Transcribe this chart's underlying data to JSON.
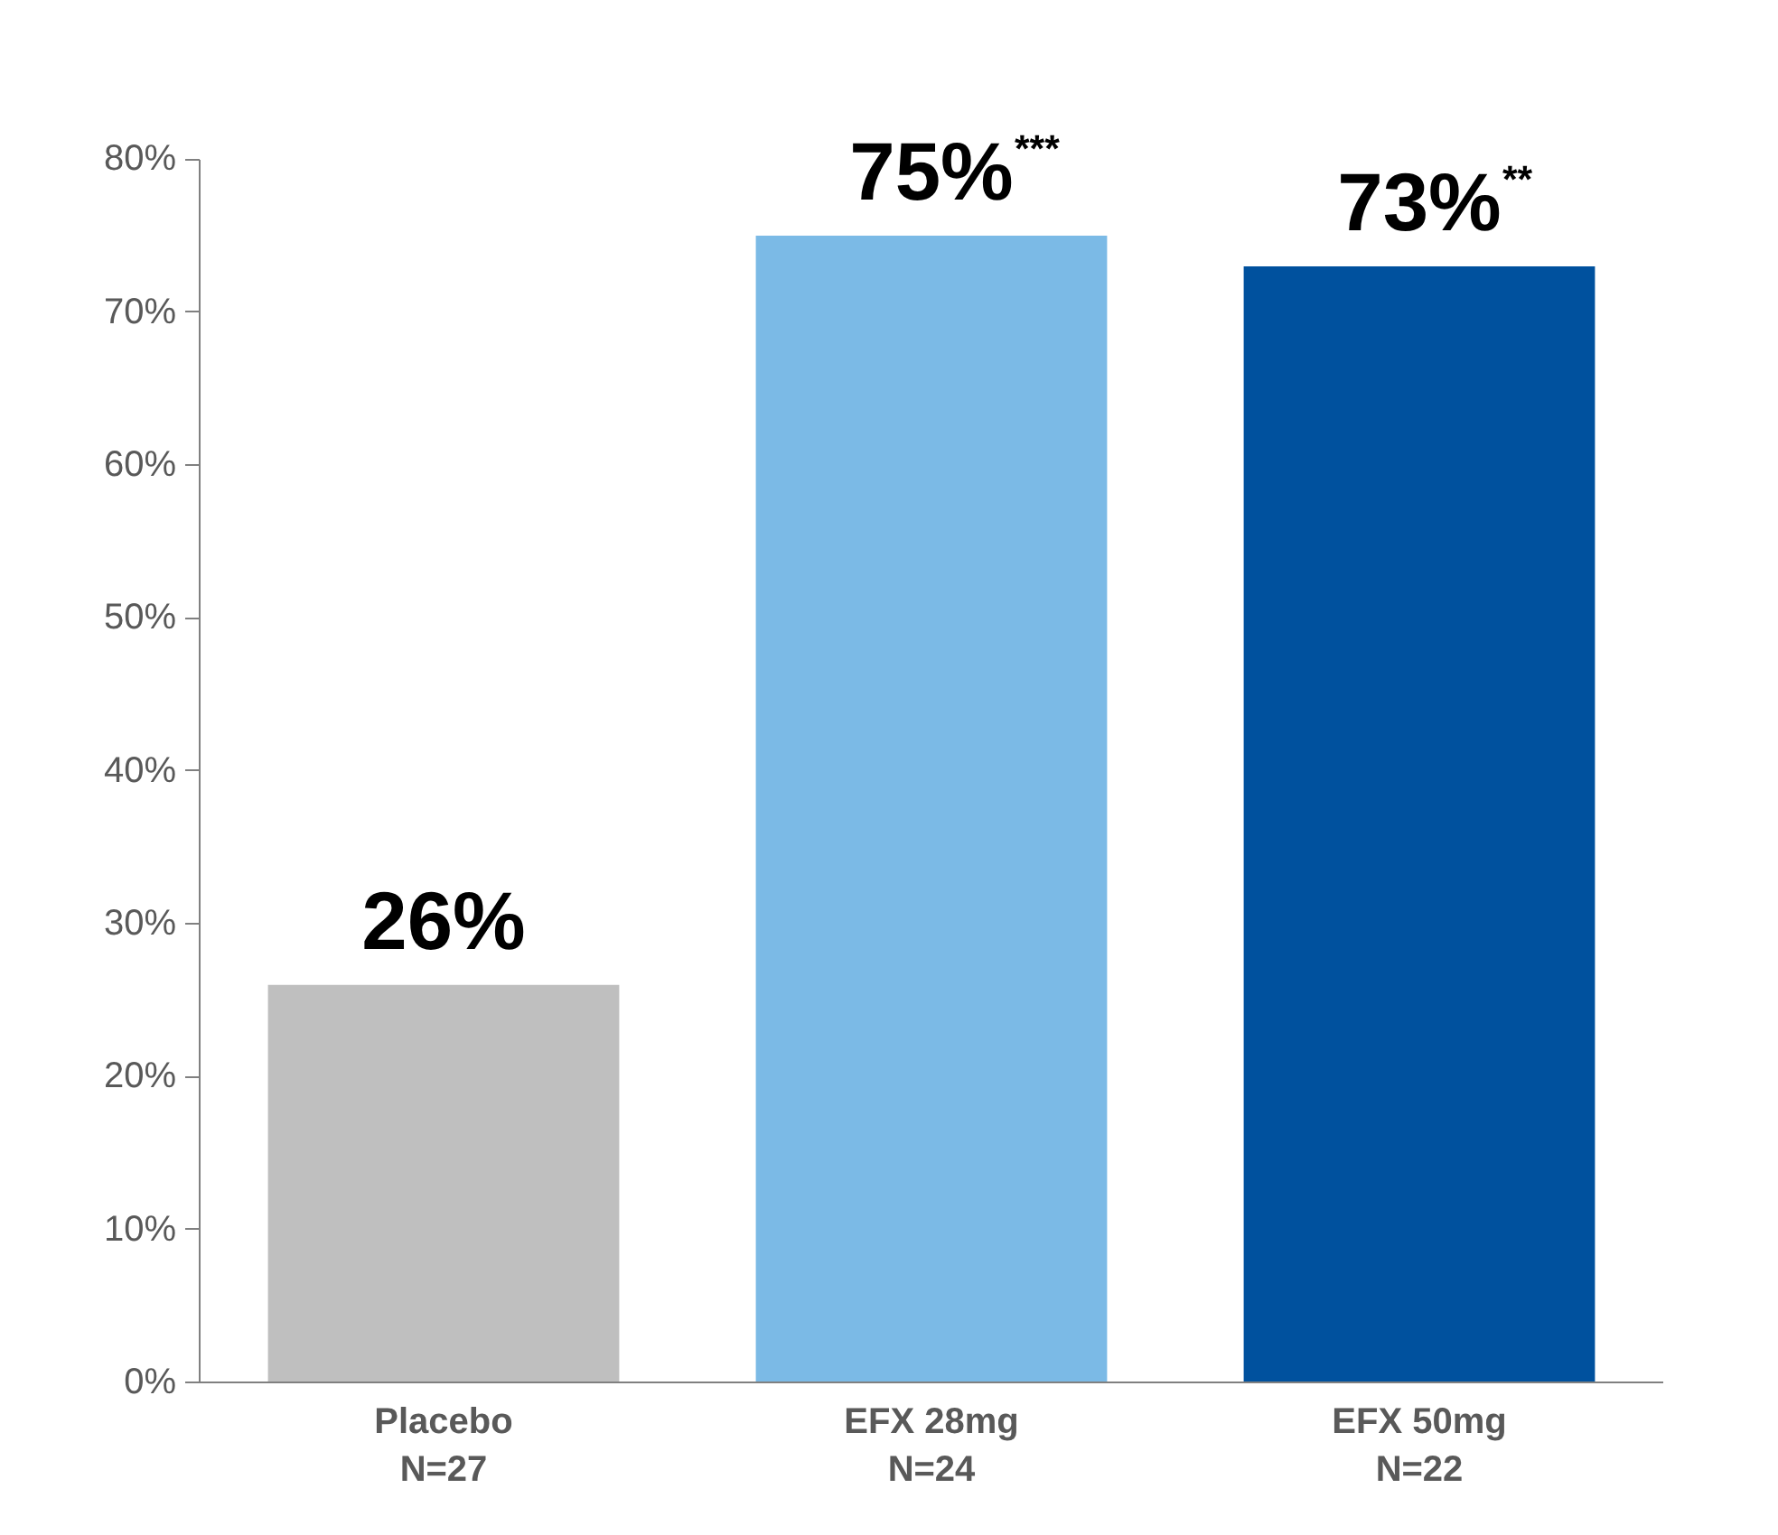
{
  "chart_data": {
    "type": "bar",
    "categories": [
      "Placebo\nN=27",
      "EFX 28mg\nN=24",
      "EFX 50mg\nN=22"
    ],
    "values": [
      26,
      75,
      73
    ],
    "colors": [
      "#bfbfbf",
      "#7bbae6",
      "#00519e"
    ],
    "value_labels": [
      "26%",
      "75%$^{***}$",
      "73%$^{**}$"
    ],
    "ylim": [
      0,
      80
    ],
    "yticks": [
      {
        "value": 0,
        "label": "0%"
      },
      {
        "value": 10,
        "label": "10%"
      },
      {
        "value": 20,
        "label": "20%"
      },
      {
        "value": 30,
        "label": "30%"
      },
      {
        "value": 40,
        "label": "40%"
      },
      {
        "value": 50,
        "label": "50%"
      },
      {
        "value": 60,
        "label": "60%"
      },
      {
        "value": 70,
        "label": "70%"
      },
      {
        "value": 80,
        "label": "80%"
      }
    ],
    "grid": false
  }
}
